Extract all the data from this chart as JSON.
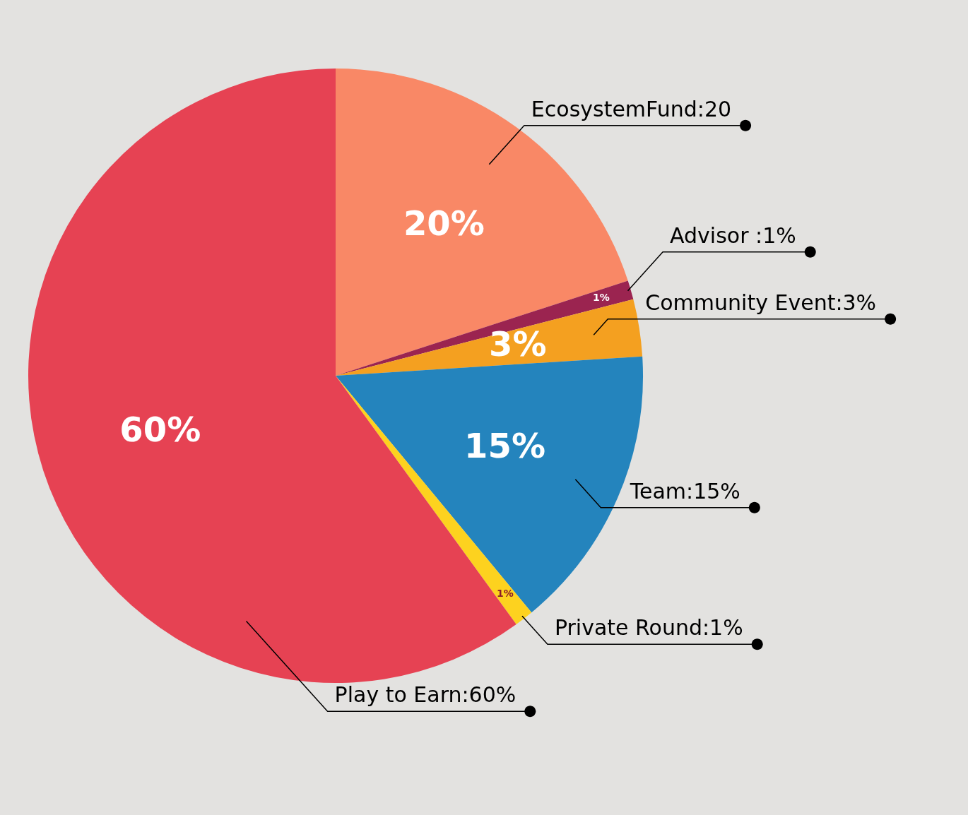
{
  "chart_data": {
    "type": "pie",
    "categories": [
      "EcosystemFund:20",
      "Advisor :1%",
      "Community Event:3%",
      "Team:15%",
      "Private Round:1%",
      "Play to Earn:60%"
    ],
    "values": [
      20,
      1,
      3,
      15,
      1,
      60
    ],
    "colors": [
      "#f98866",
      "#9b2450",
      "#f4a020",
      "#2484bd",
      "#fdd21f",
      "#e64253"
    ],
    "value_labels": [
      "20%",
      "1%",
      "3%",
      "15%",
      "1%",
      "60%"
    ],
    "legend": false
  }
}
